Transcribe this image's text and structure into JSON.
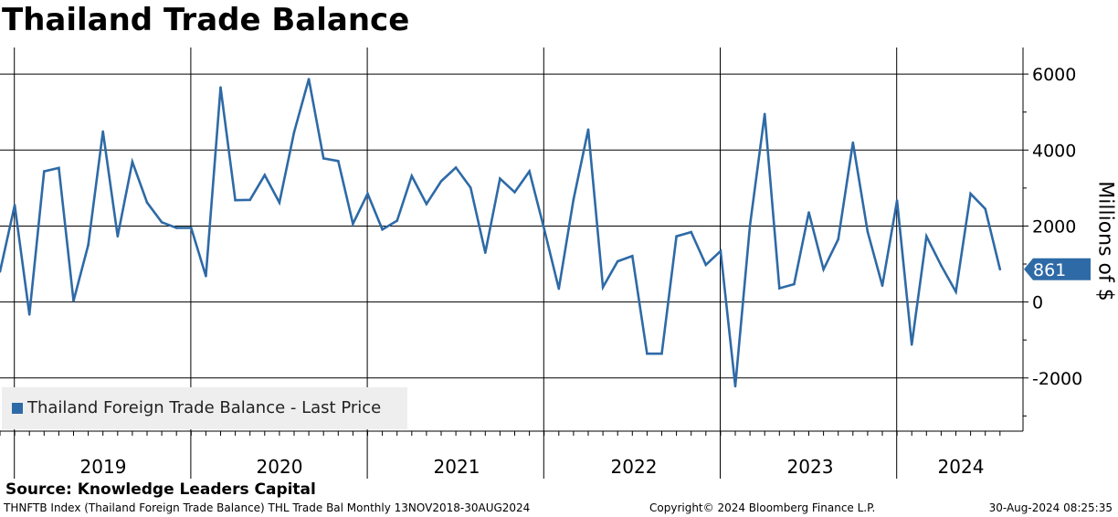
{
  "title": "Thailand Trade Balance",
  "source": "Source: Knowledge Leaders Capital",
  "footer": {
    "left": "THNFTB Index (Thailand Foreign Trade Balance) THL Trade Bal  Monthly 13NOV2018-30AUG2024",
    "center": "Copyright© 2024 Bloomberg Finance L.P.",
    "right": "30-Aug-2024 08:25:35"
  },
  "colors": {
    "series": "#2e6aa6",
    "grid": "#000000",
    "legend_bg": "#eeeeee"
  },
  "chart_data": {
    "type": "line",
    "title": "Thailand Trade Balance",
    "ylabel": "Millions of $",
    "xlabel": "",
    "ylim": [
      -3400,
      6700
    ],
    "yticks": [
      6000,
      4000,
      2000,
      0,
      -2000
    ],
    "ytick_labels": [
      "6000",
      "4000",
      "2000",
      "0",
      "-2000"
    ],
    "year_labels": [
      "2019",
      "2020",
      "2021",
      "2022",
      "2023",
      "2024"
    ],
    "legend": "Thailand Foreign Trade Balance - Last Price",
    "last_value": 861,
    "last_value_label": "861",
    "grid": true,
    "series": [
      {
        "name": "Thailand Foreign Trade Balance - Last Price",
        "x": [
          "2018-11",
          "2018-12",
          "2019-01",
          "2019-02",
          "2019-03",
          "2019-04",
          "2019-05",
          "2019-06",
          "2019-07",
          "2019-08",
          "2019-09",
          "2019-10",
          "2019-11",
          "2019-12",
          "2020-01",
          "2020-02",
          "2020-03",
          "2020-04",
          "2020-05",
          "2020-06",
          "2020-07",
          "2020-08",
          "2020-09",
          "2020-10",
          "2020-11",
          "2020-12",
          "2021-01",
          "2021-02",
          "2021-03",
          "2021-04",
          "2021-05",
          "2021-06",
          "2021-07",
          "2021-08",
          "2021-09",
          "2021-10",
          "2021-11",
          "2021-12",
          "2022-01",
          "2022-02",
          "2022-03",
          "2022-04",
          "2022-05",
          "2022-06",
          "2022-07",
          "2022-08",
          "2022-09",
          "2022-10",
          "2022-11",
          "2022-12",
          "2023-01",
          "2023-02",
          "2023-03",
          "2023-04",
          "2023-05",
          "2023-06",
          "2023-07",
          "2023-08",
          "2023-09",
          "2023-10",
          "2023-11",
          "2023-12",
          "2024-01",
          "2024-02",
          "2024-03",
          "2024-04",
          "2024-05",
          "2024-06",
          "2024-07"
        ],
        "values": [
          800,
          2550,
          -330,
          3440,
          3530,
          30,
          1500,
          4490,
          1730,
          3690,
          2620,
          2100,
          1950,
          1950,
          680,
          5650,
          2680,
          2690,
          3340,
          2620,
          4470,
          5870,
          3780,
          3710,
          2060,
          2850,
          1910,
          2140,
          3320,
          2580,
          3180,
          3540,
          3010,
          1300,
          3250,
          2890,
          3440,
          1930,
          350,
          2700,
          4540,
          390,
          1070,
          1210,
          -1360,
          -1360,
          1730,
          1840,
          980,
          1340,
          -2220,
          2020,
          4950,
          360,
          470,
          2360,
          860,
          1650,
          4200,
          1850,
          430,
          2670,
          -1120,
          1730,
          960,
          270,
          2850,
          2450,
          861
        ]
      }
    ]
  }
}
